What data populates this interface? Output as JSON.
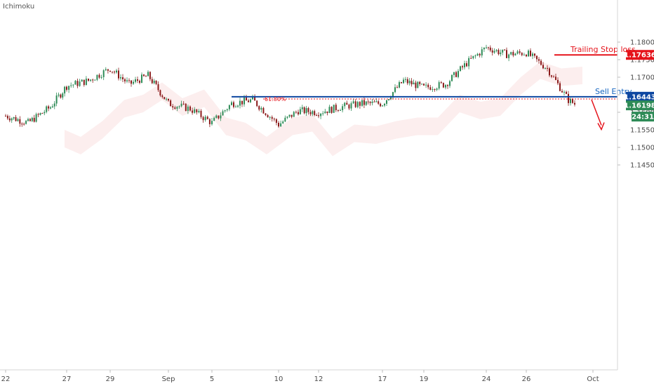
{
  "header": {
    "indicator": "Ichimoku"
  },
  "chart_data": {
    "type": "candlestick",
    "title": "",
    "xlabel": "",
    "ylabel": "",
    "ylim": [
      1.1425,
      1.1825
    ],
    "y_ticks": [
      {
        "value": 1.18,
        "label": "1.18000"
      },
      {
        "value": 1.175,
        "label": "1.17500"
      },
      {
        "value": 1.17,
        "label": "1.17000"
      },
      {
        "value": 1.165,
        "label": "1.16500"
      },
      {
        "value": 1.16,
        "label": "1.16000"
      },
      {
        "value": 1.155,
        "label": "1.15500"
      },
      {
        "value": 1.15,
        "label": "1.15000"
      },
      {
        "value": 1.145,
        "label": "1.14500"
      }
    ],
    "x_ticks": [
      {
        "date": "Aug 22",
        "label": "22"
      },
      {
        "date": "Aug 27",
        "label": "27"
      },
      {
        "date": "Aug 29",
        "label": "29"
      },
      {
        "date": "Sep 3",
        "label": "Sep"
      },
      {
        "date": "Sep 5",
        "label": "5"
      },
      {
        "date": "Sep 10",
        "label": "10"
      },
      {
        "date": "Sep 12",
        "label": "12"
      },
      {
        "date": "Sep 17",
        "label": "17"
      },
      {
        "date": "Sep 19",
        "label": "19"
      },
      {
        "date": "Sep 24",
        "label": "24"
      },
      {
        "date": "Sep 26",
        "label": "26"
      },
      {
        "date": "Oct 1",
        "label": "Oct"
      }
    ],
    "price_path": [
      [
        "Aug 22",
        1.159
      ],
      [
        "Aug 23",
        1.157
      ],
      [
        "Aug 24",
        1.1615
      ],
      [
        "Aug 27",
        1.1675
      ],
      [
        "Aug 28",
        1.169
      ],
      [
        "Aug 29",
        1.1725
      ],
      [
        "Aug 30",
        1.168
      ],
      [
        "Aug 31",
        1.1705
      ],
      [
        "Sep 3",
        1.1625
      ],
      [
        "Sep 4",
        1.161
      ],
      [
        "Sep 5",
        1.157
      ],
      [
        "Sep 6",
        1.1625
      ],
      [
        "Sep 7",
        1.1635
      ],
      [
        "Sep 10",
        1.1565
      ],
      [
        "Sep 11",
        1.1605
      ],
      [
        "Sep 12",
        1.16
      ],
      [
        "Sep 13",
        1.1615
      ],
      [
        "Sep 14",
        1.1625
      ],
      [
        "Sep 17",
        1.1625
      ],
      [
        "Sep 18",
        1.169
      ],
      [
        "Sep 19",
        1.167
      ],
      [
        "Sep 20",
        1.168
      ],
      [
        "Sep 21",
        1.174
      ],
      [
        "Sep 24",
        1.1785
      ],
      [
        "Sep 25",
        1.1765
      ],
      [
        "Sep 26",
        1.177
      ],
      [
        "Sep 27",
        1.1725
      ],
      [
        "Sep 28",
        1.1635
      ],
      [
        "Sep 28 late",
        1.162
      ]
    ],
    "levels": [
      {
        "name": "Trailing Stop loss",
        "value": 1.17636,
        "label": "1.17636",
        "color": "#e5131b"
      },
      {
        "name": "Sell Entry",
        "value": 1.16443,
        "label": "1.16443",
        "color": "#0d47a1"
      },
      {
        "name": "61.80%",
        "value": 1.1638,
        "color": "#e5131b"
      }
    ],
    "current_price": {
      "value": 1.16198,
      "label": "1.16198",
      "countdown": "24:31",
      "color": "#2e8b57"
    },
    "up_color": "#2e8b57",
    "down_color": "#8b1a1a",
    "cloud_color": "#f8d9d9",
    "arrow": {
      "from": [
        "Sep 28",
        1.164
      ],
      "to": [
        "Oct 1",
        1.1555
      ],
      "color": "#e5131b"
    },
    "grid": false
  }
}
